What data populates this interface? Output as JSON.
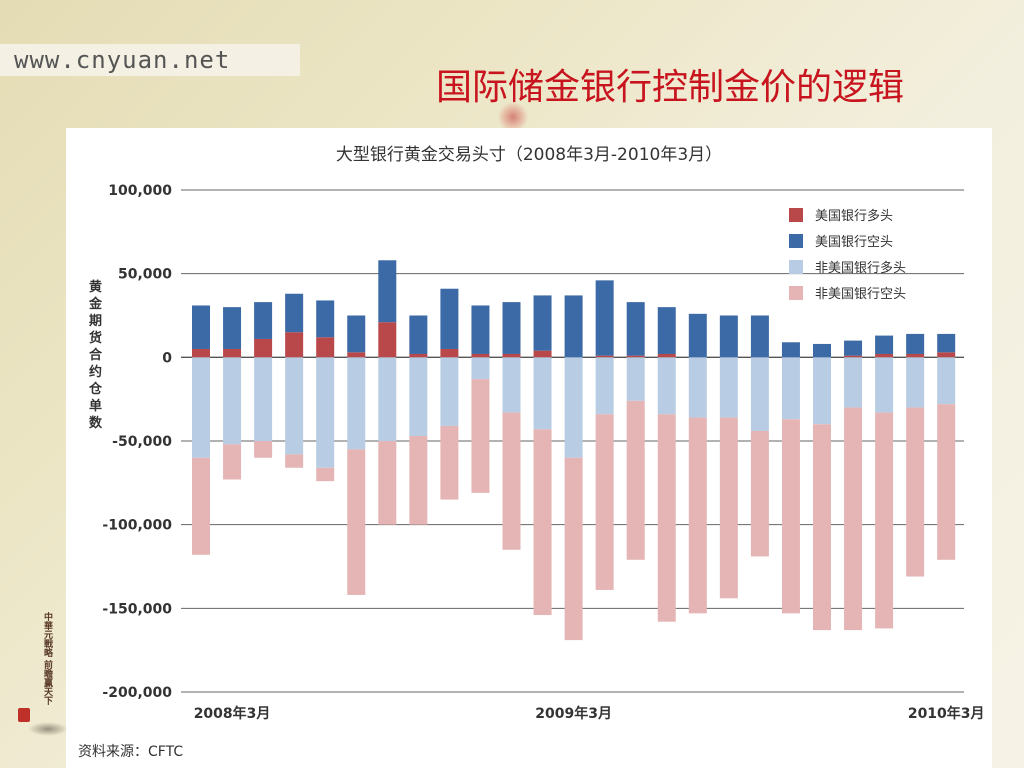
{
  "site_url": "www.cnyuan.net",
  "slide_title": "国际储金银行控制金价的逻辑",
  "seal_text": "中華元戰略 前瞻赢天下",
  "colors": {
    "title": "#c8141e",
    "us_long": "#b8484a",
    "us_short": "#3c6aa6",
    "nonus_long": "#b8cde3",
    "nonus_short": "#e5b5b5"
  },
  "chart_data": {
    "type": "bar",
    "stacked": true,
    "title": "大型银行黄金交易头寸（2008年3月-2010年3月）",
    "ylabel": "黄金期货合约仓单数",
    "xlabel": "",
    "source": "资料来源：CFTC",
    "ylim": [
      -200000,
      100000
    ],
    "yticks": [
      100000,
      50000,
      0,
      -50000,
      -100000,
      -150000,
      -200000
    ],
    "ytick_labels": [
      "100,000",
      "50,000",
      "0",
      "-50,000",
      "-100,000",
      "-150,000",
      "-200,000"
    ],
    "x_tick_labels": [
      {
        "index": 1,
        "label": "2008年3月"
      },
      {
        "index": 12,
        "label": "2009年3月"
      },
      {
        "index": 24,
        "label": "2010年3月"
      }
    ],
    "legend_position": "top-right",
    "series": [
      {
        "name": "美国银行多头",
        "color": "#b8484a",
        "values": [
          5000,
          5000,
          11000,
          15000,
          12000,
          3000,
          21000,
          2000,
          5000,
          2000,
          2000,
          4000,
          0,
          1000,
          1000,
          2000,
          0,
          0,
          0,
          0,
          0,
          1000,
          2000,
          2000,
          3000
        ]
      },
      {
        "name": "美国银行空头",
        "color": "#3c6aa6",
        "values": [
          26000,
          25000,
          22000,
          23000,
          22000,
          22000,
          37000,
          23000,
          36000,
          29000,
          31000,
          33000,
          37000,
          45000,
          32000,
          28000,
          26000,
          25000,
          25000,
          9000,
          8000,
          9000,
          11000,
          12000,
          11000
        ]
      },
      {
        "name": "非美国银行多头",
        "color": "#b8cde3",
        "values": [
          -60000,
          -52000,
          -50000,
          -58000,
          -66000,
          -55000,
          -50000,
          -47000,
          -41000,
          -13000,
          -33000,
          -43000,
          -60000,
          -34000,
          -26000,
          -34000,
          -36000,
          -36000,
          -44000,
          -37000,
          -40000,
          -30000,
          -33000,
          -30000,
          -28000
        ]
      },
      {
        "name": "非美国银行空头",
        "color": "#e5b5b5",
        "values": [
          -58000,
          -21000,
          -10000,
          -8000,
          -8000,
          -87000,
          -50000,
          -53000,
          -44000,
          -68000,
          -82000,
          -111000,
          -109000,
          -105000,
          -95000,
          -124000,
          -117000,
          -108000,
          -75000,
          -116000,
          -123000,
          -133000,
          -129000,
          -101000,
          -93000
        ]
      }
    ]
  }
}
